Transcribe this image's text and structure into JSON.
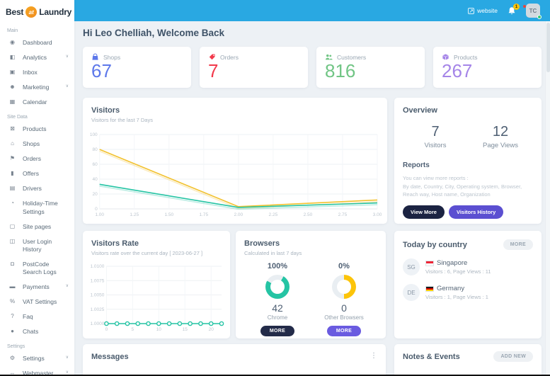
{
  "theme": {
    "topbar_blue": "#29a8e2",
    "accent_dark": "#1b2342",
    "accent_purple": "#5b4fd1",
    "teal": "#25c4a4",
    "yellow": "#f2c12e",
    "background": "#edf1f5"
  },
  "brand": {
    "best": "Best",
    "at": "at",
    "laundry": "Laundry"
  },
  "topbar": {
    "website": "website",
    "bell_badge": "1",
    "avatar_text": "TC"
  },
  "greeting": "Hi Leo Chelliah, Welcome Back",
  "sidebar": {
    "sections": [
      {
        "label": "Main",
        "items": [
          {
            "slug": "dashboard",
            "glyph": "◉",
            "label": "Dashboard"
          },
          {
            "slug": "analytics",
            "glyph": "◧",
            "label": "Analytics",
            "chevron": true
          },
          {
            "slug": "inbox",
            "glyph": "▣",
            "label": "Inbox"
          },
          {
            "slug": "marketing",
            "glyph": "☻",
            "label": "Marketing",
            "chevron": true
          },
          {
            "slug": "calendar",
            "glyph": "▦",
            "label": "Calendar"
          }
        ]
      },
      {
        "label": "Site Data",
        "items": [
          {
            "slug": "products",
            "glyph": "⊠",
            "label": "Products"
          },
          {
            "slug": "shops",
            "glyph": "⌂",
            "label": "Shops"
          },
          {
            "slug": "orders",
            "glyph": "⚑",
            "label": "Orders"
          },
          {
            "slug": "offers",
            "glyph": "▮",
            "label": "Offers"
          },
          {
            "slug": "drivers",
            "glyph": "▤",
            "label": "Drivers"
          },
          {
            "slug": "holiday-time-settings",
            "glyph": "◔",
            "label": "Holiday-Time Settings"
          },
          {
            "slug": "site-pages",
            "glyph": "▢",
            "label": "Site pages"
          },
          {
            "slug": "user-login-history",
            "glyph": "◫",
            "label": "User Login History"
          },
          {
            "slug": "postcode-search-logs",
            "glyph": "◘",
            "label": "PostCode Search Logs"
          },
          {
            "slug": "payments",
            "glyph": "▬",
            "label": "Payments",
            "chevron": true
          },
          {
            "slug": "vat-settings",
            "glyph": "%",
            "label": "VAT Settings"
          },
          {
            "slug": "faq",
            "glyph": "?",
            "label": "Faq"
          },
          {
            "slug": "chats",
            "glyph": "●",
            "label": "Chats"
          }
        ]
      },
      {
        "label": "Settings",
        "items": [
          {
            "slug": "settings",
            "glyph": "⚙",
            "label": "Settings",
            "chevron": true
          },
          {
            "slug": "webmaster",
            "glyph": "↔",
            "label": "Webmaster",
            "chevron": true
          }
        ]
      }
    ]
  },
  "stats": [
    {
      "label": "Shops",
      "value": "67",
      "color": "#5d78ea"
    },
    {
      "label": "Orders",
      "value": "7",
      "color": "#f23a4c"
    },
    {
      "label": "Customers",
      "value": "816",
      "color": "#71c585"
    },
    {
      "label": "Products",
      "value": "267",
      "color": "#a585e8"
    }
  ],
  "visitors_card": {
    "title": "Visitors",
    "subtitle": "Visitors for the last 7 Days"
  },
  "overview": {
    "title": "Overview",
    "visitors_value": "7",
    "visitors_label": "Visitors",
    "pageviews_value": "12",
    "pageviews_label": "Page Views",
    "reports_title": "Reports",
    "reports_line1": "You can view more reports :",
    "reports_line2": "By date, Country, City, Operating system, Browser, Reach way, Host name, Organization",
    "view_more": "View More",
    "visitors_history": "Visitors History"
  },
  "visitors_rate_card": {
    "title": "Visitors Rate",
    "subtitle": "Visitors rate over the current day [ 2023-06-27 ]"
  },
  "browsers_card": {
    "title": "Browsers",
    "subtitle": "Calculated in last 7 days",
    "items": [
      {
        "percent": "100%",
        "value": "42",
        "label": "Chrome",
        "more": "MORE",
        "color": "#25c4a4",
        "arc_from": 30,
        "arc_pct": 75
      },
      {
        "percent": "0%",
        "value": "0",
        "label": "Other Browsers",
        "more": "MORE",
        "color": "#fcc40a",
        "arc_from": 0,
        "arc_pct": 50
      }
    ]
  },
  "today_by_country": {
    "title": "Today by country",
    "more": "MORE",
    "rows": [
      {
        "code": "SG",
        "name": "Singapore",
        "stats": "Visitors : 6, Page Views : 11",
        "flag": "sg"
      },
      {
        "code": "DE",
        "name": "Germany",
        "stats": "Visitors : 1, Page Views : 1",
        "flag": "de"
      }
    ]
  },
  "flags": {
    "sg": [
      "#ee2536",
      "#ffffff"
    ],
    "de": [
      "#1a1a1a",
      "#dd0000",
      "#ffce00"
    ]
  },
  "messages_card": {
    "title": "Messages",
    "menu": "⋮"
  },
  "notes_card": {
    "title": "Notes & Events",
    "add_new": "ADD NEW"
  },
  "chart_data": [
    {
      "id": "visitors",
      "type": "line",
      "title": "Visitors",
      "shadow": true,
      "grid": true,
      "legend_position": "none",
      "xlim": [
        1,
        3
      ],
      "ylim": [
        0,
        100
      ],
      "ticks_x": [
        [
          1,
          "1.00"
        ],
        [
          1.25,
          "1.25"
        ],
        [
          1.5,
          "1.50"
        ],
        [
          1.75,
          "1.75"
        ],
        [
          2,
          "2.00"
        ],
        [
          2.25,
          "2.25"
        ],
        [
          2.5,
          "2.50"
        ],
        [
          2.75,
          "2.75"
        ],
        [
          3,
          "3.00"
        ]
      ],
      "ticks_y": [
        [
          0,
          "0"
        ],
        [
          20,
          "20"
        ],
        [
          40,
          "40"
        ],
        [
          60,
          "60"
        ],
        [
          80,
          "80"
        ],
        [
          100,
          "100"
        ]
      ],
      "x": [
        1,
        2,
        3
      ],
      "series": [
        {
          "name": "Page Views",
          "color": "#f2c12e",
          "values": [
            80,
            3,
            12
          ]
        },
        {
          "name": "Visitors",
          "color": "#25c4a4",
          "values": [
            33,
            2,
            8
          ]
        }
      ]
    },
    {
      "id": "visitors_rate",
      "type": "line",
      "title": "Visitors Rate",
      "grid": true,
      "legend_position": "none",
      "xlim": [
        0,
        22
      ],
      "ylim": [
        1.0,
        1.01
      ],
      "ticks_x": [
        [
          0,
          "0"
        ],
        [
          5,
          "5"
        ],
        [
          10,
          "10"
        ],
        [
          15,
          "15"
        ],
        [
          20,
          "20"
        ]
      ],
      "ticks_y": [
        [
          1.0,
          "1.0000"
        ],
        [
          1.0025,
          "1.0025"
        ],
        [
          1.005,
          "1.0050"
        ],
        [
          1.0075,
          "1.0075"
        ],
        [
          1.01,
          "1.0100"
        ]
      ],
      "x": [
        0,
        2,
        4,
        6,
        8,
        10,
        12,
        14,
        16,
        18,
        20,
        22
      ],
      "series": [
        {
          "name": "Visitors rate",
          "color": "#25c4a4",
          "values": [
            1,
            1,
            1,
            1,
            1,
            1,
            1,
            1,
            1,
            1,
            1,
            1
          ],
          "markers": true
        }
      ]
    },
    {
      "id": "browsers",
      "type": "donut",
      "title": "Browsers",
      "items": [
        {
          "label": "Chrome",
          "percent": 100,
          "count": 42,
          "color": "#25c4a4"
        },
        {
          "label": "Other Browsers",
          "percent": 0,
          "count": 0,
          "color": "#fcc40a"
        }
      ]
    }
  ]
}
